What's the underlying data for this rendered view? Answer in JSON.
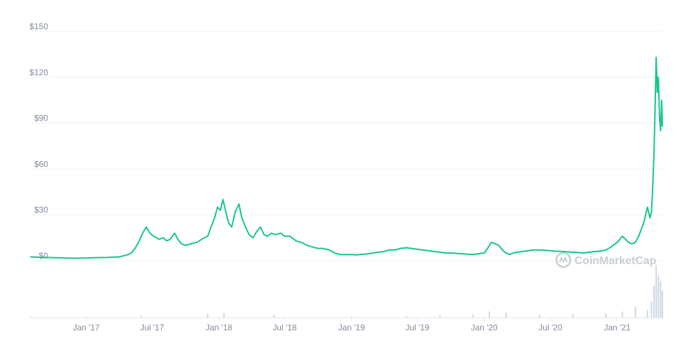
{
  "chart_data": {
    "type": "line",
    "title": "",
    "xlabel": "",
    "ylabel": "",
    "ylim": [
      0,
      150
    ],
    "grid": true,
    "y_ticks": [
      {
        "value": 0,
        "label": "$0"
      },
      {
        "value": 30,
        "label": "$30"
      },
      {
        "value": 60,
        "label": "$60"
      },
      {
        "value": 90,
        "label": "$90"
      },
      {
        "value": 120,
        "label": "$120"
      },
      {
        "value": 150,
        "label": "$150"
      }
    ],
    "x_ticks": [
      {
        "date": "2017-01-01",
        "label": "Jan '17"
      },
      {
        "date": "2017-07-01",
        "label": "Jul '17"
      },
      {
        "date": "2018-01-01",
        "label": "Jan '18"
      },
      {
        "date": "2018-07-01",
        "label": "Jul '18"
      },
      {
        "date": "2019-01-01",
        "label": "Jan '19"
      },
      {
        "date": "2019-07-01",
        "label": "Jul '19"
      },
      {
        "date": "2020-01-01",
        "label": "Jan '20"
      },
      {
        "date": "2020-07-01",
        "label": "Jul '20"
      },
      {
        "date": "2021-01-01",
        "label": "Jan '21"
      }
    ],
    "x_range": [
      "2016-08-01",
      "2021-05-05"
    ],
    "series": [
      {
        "name": "",
        "color": "#16c784",
        "x": [
          "2016-08-01",
          "2016-09-01",
          "2016-10-01",
          "2016-11-01",
          "2016-12-01",
          "2017-01-01",
          "2017-02-01",
          "2017-03-01",
          "2017-04-01",
          "2017-04-20",
          "2017-05-05",
          "2017-05-15",
          "2017-05-25",
          "2017-06-05",
          "2017-06-15",
          "2017-06-25",
          "2017-07-05",
          "2017-07-20",
          "2017-08-01",
          "2017-08-10",
          "2017-08-20",
          "2017-09-01",
          "2017-09-10",
          "2017-09-20",
          "2017-10-01",
          "2017-10-15",
          "2017-11-01",
          "2017-11-15",
          "2017-12-01",
          "2017-12-10",
          "2017-12-20",
          "2017-12-28",
          "2018-01-05",
          "2018-01-12",
          "2018-01-20",
          "2018-01-27",
          "2018-02-05",
          "2018-02-15",
          "2018-02-25",
          "2018-03-05",
          "2018-03-15",
          "2018-03-25",
          "2018-04-05",
          "2018-04-15",
          "2018-04-25",
          "2018-05-05",
          "2018-05-15",
          "2018-05-25",
          "2018-06-05",
          "2018-06-20",
          "2018-07-01",
          "2018-07-15",
          "2018-08-01",
          "2018-08-15",
          "2018-09-01",
          "2018-09-15",
          "2018-10-01",
          "2018-10-15",
          "2018-11-01",
          "2018-11-15",
          "2018-12-01",
          "2018-12-15",
          "2019-01-01",
          "2019-01-15",
          "2019-02-01",
          "2019-02-15",
          "2019-03-01",
          "2019-03-15",
          "2019-04-01",
          "2019-04-15",
          "2019-05-01",
          "2019-05-15",
          "2019-06-01",
          "2019-06-15",
          "2019-07-01",
          "2019-07-15",
          "2019-08-01",
          "2019-08-15",
          "2019-09-01",
          "2019-09-15",
          "2019-10-01",
          "2019-10-15",
          "2019-11-01",
          "2019-11-15",
          "2019-12-01",
          "2019-12-15",
          "2020-01-01",
          "2020-01-10",
          "2020-01-20",
          "2020-02-01",
          "2020-02-10",
          "2020-02-20",
          "2020-03-01",
          "2020-03-12",
          "2020-03-20",
          "2020-04-01",
          "2020-04-15",
          "2020-05-01",
          "2020-05-15",
          "2020-06-01",
          "2020-06-15",
          "2020-07-01",
          "2020-07-15",
          "2020-08-01",
          "2020-08-15",
          "2020-09-01",
          "2020-09-15",
          "2020-10-01",
          "2020-10-15",
          "2020-11-01",
          "2020-11-15",
          "2020-12-01",
          "2020-12-15",
          "2021-01-01",
          "2021-01-15",
          "2021-02-01",
          "2021-02-10",
          "2021-02-20",
          "2021-03-01",
          "2021-03-15",
          "2021-03-25",
          "2021-04-01",
          "2021-04-05",
          "2021-04-08",
          "2021-04-12",
          "2021-04-15",
          "2021-04-18",
          "2021-04-21",
          "2021-04-24",
          "2021-04-27",
          "2021-04-30",
          "2021-05-03",
          "2021-05-05"
        ],
        "values": [
          2.5,
          2.2,
          2,
          1.8,
          1.6,
          1.8,
          2,
          2.1,
          2.5,
          3.5,
          5,
          8,
          12,
          18,
          22,
          18,
          16,
          14,
          15,
          13,
          14,
          18,
          14,
          11,
          10,
          11,
          12,
          14,
          16,
          22,
          28,
          35,
          33,
          40,
          32,
          25,
          22,
          32,
          37,
          28,
          22,
          17,
          15,
          19,
          22,
          17,
          16,
          18,
          17,
          18,
          16,
          16,
          13,
          12,
          10,
          9,
          8,
          8,
          7,
          5,
          4,
          4,
          4,
          3.8,
          4.2,
          4.5,
          5,
          5.5,
          6,
          7,
          7,
          8,
          8.5,
          8,
          7.5,
          7,
          6.5,
          6,
          5.5,
          5,
          5,
          4.8,
          4.5,
          4.2,
          4,
          4.5,
          5,
          8,
          12,
          11,
          10,
          7,
          5,
          4,
          5,
          5.5,
          6,
          6.5,
          7,
          7,
          6.8,
          6.5,
          6.2,
          6,
          5.8,
          5.5,
          5.3,
          5,
          5.5,
          6,
          6.2,
          7,
          9,
          12,
          16,
          12,
          11,
          12,
          16,
          25,
          35,
          28,
          32,
          45,
          70,
          100,
          133,
          110,
          120,
          95,
          85,
          105,
          88
        ]
      }
    ],
    "volume": {
      "color": "#cfd6e4",
      "x": [
        "2016-08-01",
        "2017-01-01",
        "2017-06-01",
        "2017-12-01",
        "2018-01-15",
        "2018-06-01",
        "2019-01-01",
        "2019-06-01",
        "2019-09-01",
        "2019-12-01",
        "2020-01-15",
        "2020-03-01",
        "2020-06-01",
        "2020-09-01",
        "2020-12-01",
        "2021-01-15",
        "2021-02-20",
        "2021-03-25",
        "2021-04-05",
        "2021-04-12",
        "2021-04-18",
        "2021-04-24",
        "2021-04-30",
        "2021-05-05"
      ],
      "values": [
        0.02,
        0.02,
        0.04,
        0.08,
        0.09,
        0.05,
        0.03,
        0.04,
        0.05,
        0.06,
        0.12,
        0.1,
        0.06,
        0.07,
        0.09,
        0.12,
        0.2,
        0.15,
        0.3,
        0.6,
        1.0,
        0.8,
        0.7,
        0.5
      ]
    }
  },
  "watermark": {
    "text": "CoinMarketCap",
    "icon": "coinmarketcap-logo-icon"
  }
}
